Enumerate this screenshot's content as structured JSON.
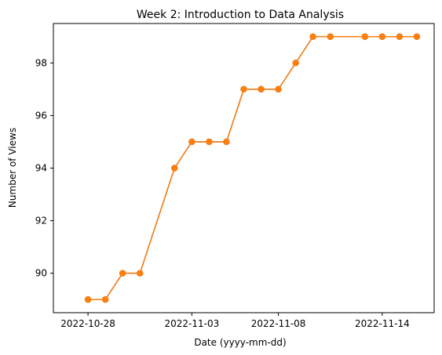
{
  "chart_data": {
    "type": "line",
    "title": "Week 2: Introduction to Data Analysis",
    "xlabel": "Date (yyyy-mm-dd)",
    "ylabel": "Number of Views",
    "x_ticks": [
      "2022-10-28",
      "2022-11-03",
      "2022-11-08",
      "2022-11-14"
    ],
    "y_ticks": [
      90,
      92,
      94,
      96,
      98
    ],
    "xlim": [
      "2022-10-26",
      "2022-11-17"
    ],
    "ylim": [
      88.5,
      99.5
    ],
    "grid": false,
    "series_colors": [
      "#1f77b4",
      "#ff7f0e"
    ],
    "series": [
      {
        "x": [
          "2022-10-28",
          "2022-10-29",
          "2022-10-30",
          "2022-10-31",
          "2022-11-02",
          "2022-11-03",
          "2022-11-04",
          "2022-11-05",
          "2022-11-06",
          "2022-11-07",
          "2022-11-08",
          "2022-11-09",
          "2022-11-10",
          "2022-11-11",
          "2022-11-13",
          "2022-11-14",
          "2022-11-15",
          "2022-11-16"
        ],
        "values": [
          89,
          89,
          90,
          90,
          94,
          95,
          95,
          95,
          97,
          97,
          97,
          98,
          99,
          99,
          99,
          99,
          99,
          99
        ]
      },
      {
        "x": [
          "2022-10-28",
          "2022-10-29",
          "2022-10-30",
          "2022-10-31",
          "2022-11-02",
          "2022-11-03",
          "2022-11-04",
          "2022-11-05",
          "2022-11-06",
          "2022-11-07",
          "2022-11-08",
          "2022-11-09",
          "2022-11-10",
          "2022-11-11",
          "2022-11-13",
          "2022-11-14",
          "2022-11-15",
          "2022-11-16"
        ],
        "values": [
          89,
          89,
          90,
          90,
          94,
          95,
          95,
          95,
          97,
          97,
          97,
          98,
          99,
          99,
          99,
          99,
          99,
          99
        ]
      }
    ]
  }
}
